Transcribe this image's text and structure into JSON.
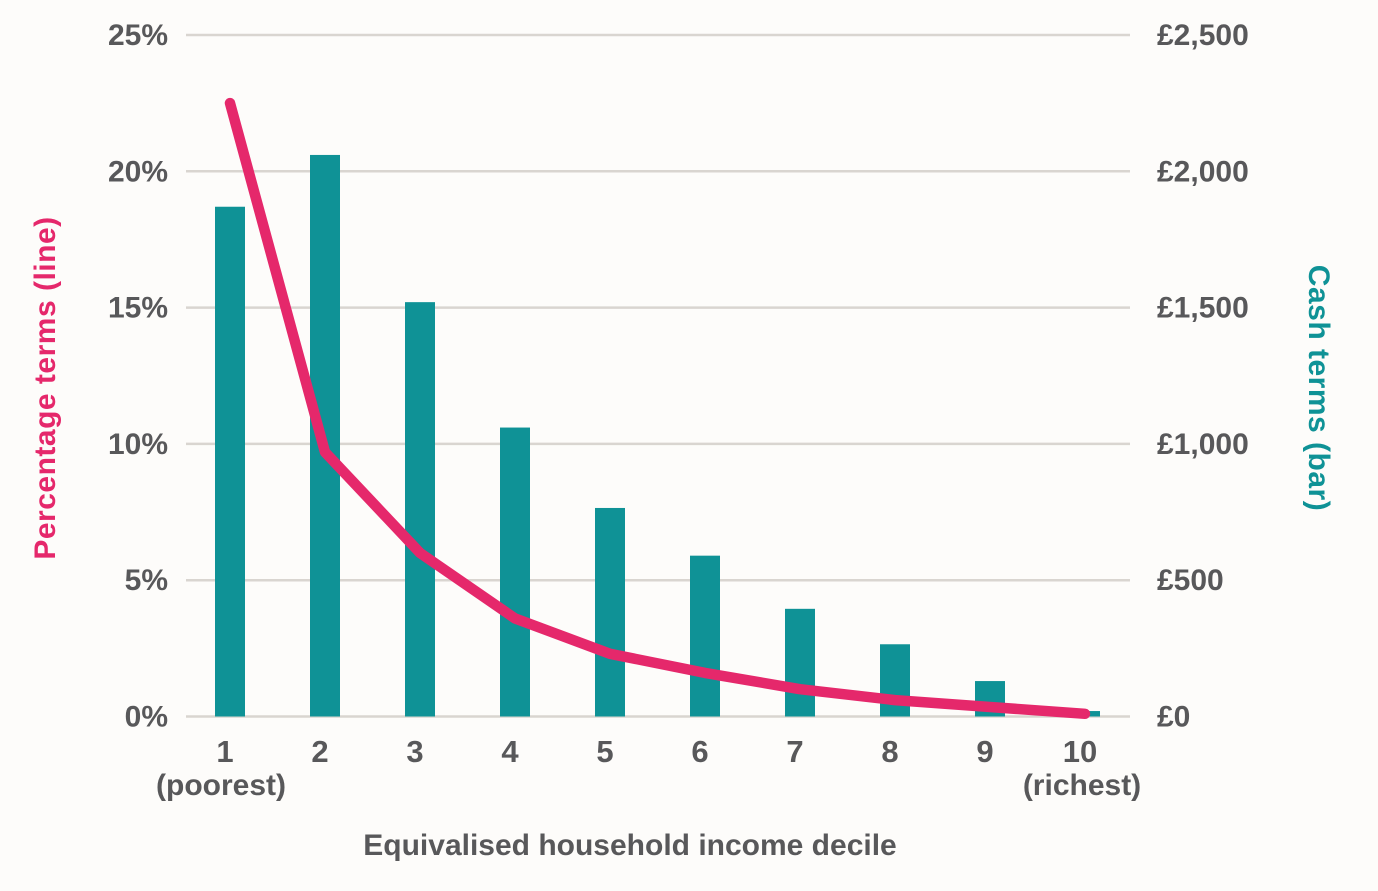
{
  "chart_data": {
    "type": "combo-bar-line",
    "title": "",
    "xlabel": "Equivalised household income decile",
    "categories": [
      "1",
      "2",
      "3",
      "4",
      "5",
      "6",
      "7",
      "8",
      "9",
      "10"
    ],
    "first_category_sublabel": "(poorest)",
    "last_category_sublabel": "(richest)",
    "grid": true,
    "legend_position": "none",
    "left_axis": {
      "title": "Percentage terms (line)",
      "range": [
        0,
        25
      ],
      "tick_values": [
        0,
        5,
        10,
        15,
        20,
        25
      ],
      "tick_labels": [
        "0%",
        "5%",
        "10%",
        "15%",
        "20%",
        "25%"
      ]
    },
    "right_axis": {
      "title": "Cash terms (bar)",
      "range": [
        0,
        2500
      ],
      "tick_values": [
        0,
        500,
        1000,
        1500,
        2000,
        2500
      ],
      "tick_labels": [
        "£0",
        "£500",
        "£1,000",
        "£1,500",
        "£2,000",
        "£2,500"
      ]
    },
    "series": [
      {
        "name": "Cash terms (bar)",
        "type": "bar",
        "axis": "right",
        "color": "#0f9296",
        "values": [
          1870,
          2060,
          1520,
          1060,
          765,
          590,
          395,
          265,
          130,
          20
        ]
      },
      {
        "name": "Percentage terms (line)",
        "type": "line",
        "axis": "left",
        "color": "#e5286b",
        "values": [
          22.5,
          9.7,
          6.0,
          3.6,
          2.3,
          1.6,
          1.0,
          0.6,
          0.35,
          0.1
        ]
      }
    ]
  },
  "colors": {
    "background": "#fdfcfa",
    "gridline": "#d9d5d0",
    "tick_text": "#58585a",
    "bar_teal": "#0f9296",
    "line_pink": "#e5286b"
  }
}
